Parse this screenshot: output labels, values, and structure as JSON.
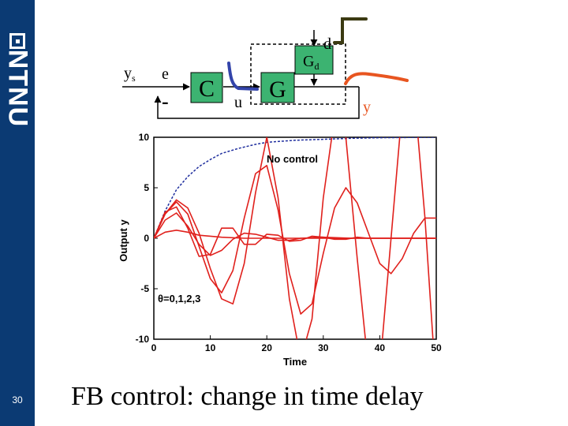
{
  "slide": {
    "page_number": "30",
    "logo_text": "NTNU",
    "title": "FB control: change in time delay"
  },
  "diagram": {
    "ys": "y",
    "ys_sub": "s",
    "e": "e",
    "minus": "-",
    "controller": "C",
    "u": "u",
    "plant": "G",
    "disturbance_block": "G",
    "disturbance_sub": "d",
    "d": "d",
    "y": "y"
  },
  "colors": {
    "sidebar": "#0b3a73",
    "response": "#e0201c",
    "no_control": "#1f2e9e",
    "block_fill": "#3cb371",
    "u_stroke": "#3344aa",
    "y_stroke": "#e85520",
    "d_stroke": "#3b3a12"
  },
  "chart_data": {
    "type": "line",
    "xlabel": "Time",
    "ylabel": "Output y",
    "xlim": [
      0,
      50
    ],
    "ylim": [
      -10,
      10
    ],
    "xticks": [
      0,
      10,
      20,
      30,
      40,
      50
    ],
    "yticks": [
      10,
      5,
      0,
      -5,
      -10
    ],
    "annotations": [
      "No control",
      "θ=0,1,2,3"
    ],
    "series": [
      {
        "name": "No control",
        "style": "dashed",
        "x": [
          0,
          2,
          4,
          6,
          8,
          10,
          12,
          15,
          18,
          20,
          25,
          30,
          35,
          40,
          45,
          50
        ],
        "y": [
          0,
          2.7,
          4.8,
          6.1,
          7.1,
          7.8,
          8.4,
          8.9,
          9.3,
          9.5,
          9.7,
          9.8,
          9.9,
          9.95,
          9.98,
          10
        ]
      },
      {
        "x": [
          0,
          2,
          4,
          6,
          8,
          12,
          16,
          20,
          25,
          30,
          35,
          40,
          45,
          50
        ],
        "y": [
          0,
          0.6,
          0.8,
          0.6,
          0.3,
          0.1,
          0,
          0,
          0,
          0,
          0,
          0,
          0,
          0
        ]
      },
      {
        "x": [
          0,
          2,
          4,
          6,
          8,
          10,
          12,
          14,
          16,
          18,
          20,
          22,
          24,
          26,
          30,
          35,
          40,
          50
        ],
        "y": [
          0,
          1.8,
          2.5,
          1.2,
          -0.6,
          -1.7,
          -1.2,
          -0.1,
          0.5,
          0.4,
          0.1,
          -0.2,
          -0.2,
          0,
          0.1,
          0,
          0,
          0
        ]
      },
      {
        "x": [
          0,
          2,
          4,
          6,
          8,
          10,
          12,
          14,
          16,
          18,
          20,
          22,
          24,
          26,
          28,
          30,
          32,
          34,
          36,
          38,
          40,
          42,
          44,
          46,
          48,
          50
        ],
        "y": [
          0,
          2.6,
          3.1,
          1.0,
          -1.8,
          -1.6,
          1.0,
          1.0,
          -0.6,
          -0.6,
          0.4,
          0.3,
          -0.3,
          -0.2,
          0.2,
          0.1,
          -0.1,
          -0.1,
          0.1,
          0,
          0,
          0,
          0,
          0,
          0,
          0
        ]
      },
      {
        "x": [
          0,
          2,
          4,
          6,
          8,
          10,
          12,
          14,
          16,
          18,
          20,
          22,
          24,
          26,
          28,
          30,
          32,
          34,
          36,
          38,
          40,
          42,
          44,
          46,
          48,
          50
        ],
        "y": [
          0,
          2.4,
          3.6,
          2.4,
          -0.8,
          -4.0,
          -5.4,
          -3.2,
          2.0,
          6.4,
          7.2,
          2.8,
          -3.5,
          -7.5,
          -6.5,
          -1.5,
          3.0,
          5.0,
          3.5,
          0.5,
          -2.5,
          -3.5,
          -2.0,
          0.5,
          2.0,
          2.0
        ]
      },
      {
        "x": [
          0,
          2,
          4,
          6,
          8,
          10,
          12,
          14,
          16,
          18,
          20,
          22,
          24,
          26,
          28,
          30,
          32,
          34,
          36,
          38,
          40,
          42,
          44,
          46,
          48,
          50
        ],
        "y": [
          0,
          2.4,
          3.8,
          3.0,
          0.5,
          -3.0,
          -6.0,
          -6.5,
          -2.5,
          4.5,
          10,
          4.0,
          -6.0,
          -12,
          -8.0,
          4.0,
          12,
          10,
          -2.0,
          -13,
          -13,
          0,
          13,
          15,
          2.0,
          -15
        ]
      }
    ]
  }
}
